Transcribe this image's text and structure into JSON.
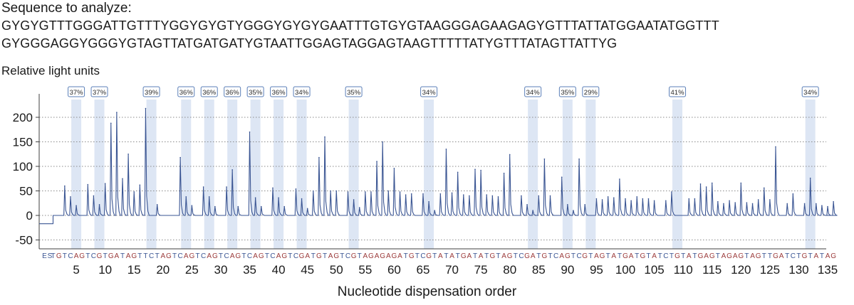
{
  "header": {
    "title": "Sequence to analyze:",
    "sequence_line1": "GYGYGTTTGGGATTGTTTYGGYGYGTYGGGYGYGYGAATTTGTGYGTAAGGGAGAAGAGYGTTTATTATGGAATATGGTTT",
    "sequence_line2": "GYGGGAGGYGGGYGTAGTTATGATGATYGTAATTGGAGTAGGAGTAAGTTTTTATYGTTTATAGTTATTYG"
  },
  "chart_data": {
    "type": "line",
    "title": "",
    "ylabel": "Relative light units",
    "xlabel": "Nucleotide dispensation order",
    "ylim": [
      -60,
      230
    ],
    "y_ticks": [
      -50,
      0,
      50,
      100,
      150,
      200
    ],
    "grid": "dotted horizontal",
    "baseline_start": -17,
    "dispensation_order": "ESTGTCAGTCGTGATAGTTCTAGTCAGTCAGTCAGTCAGTCAGTCGATGTAGTCGTAGAGAGATGTCGTATATGATATGTAGTCGATGTCAGTCGTAGTATGATGTATCTGTATGAGTAGAGTAGTTGATCTGTATAG",
    "x_tick_labels": [
      "5",
      "10",
      "15",
      "20",
      "25",
      "30",
      "35",
      "40",
      "45",
      "50",
      "55",
      "60",
      "65",
      "70",
      "75",
      "80",
      "85",
      "90",
      "95",
      "100",
      "105",
      "110",
      "115",
      "120",
      "125",
      "130",
      "135"
    ],
    "peaks": [
      {
        "pos": 3,
        "h": 60
      },
      {
        "pos": 4,
        "h": 38
      },
      {
        "pos": 5,
        "h": 20
      },
      {
        "pos": 7,
        "h": 63
      },
      {
        "pos": 8,
        "h": 40
      },
      {
        "pos": 9,
        "h": 22
      },
      {
        "pos": 10,
        "h": 65
      },
      {
        "pos": 11,
        "h": 188
      },
      {
        "pos": 12,
        "h": 210
      },
      {
        "pos": 13,
        "h": 75
      },
      {
        "pos": 14,
        "h": 125
      },
      {
        "pos": 15,
        "h": 48
      },
      {
        "pos": 16,
        "h": 62
      },
      {
        "pos": 17,
        "h": 218
      },
      {
        "pos": 19,
        "h": 22
      },
      {
        "pos": 23,
        "h": 118
      },
      {
        "pos": 24,
        "h": 38
      },
      {
        "pos": 25,
        "h": 20
      },
      {
        "pos": 27,
        "h": 58
      },
      {
        "pos": 28,
        "h": 38
      },
      {
        "pos": 29,
        "h": 18
      },
      {
        "pos": 31,
        "h": 58
      },
      {
        "pos": 32,
        "h": 93
      },
      {
        "pos": 33,
        "h": 18
      },
      {
        "pos": 35,
        "h": 170
      },
      {
        "pos": 36,
        "h": 36
      },
      {
        "pos": 37,
        "h": 18
      },
      {
        "pos": 39,
        "h": 56
      },
      {
        "pos": 40,
        "h": 36
      },
      {
        "pos": 41,
        "h": 18
      },
      {
        "pos": 43,
        "h": 54
      },
      {
        "pos": 44,
        "h": 34
      },
      {
        "pos": 45,
        "h": 14
      },
      {
        "pos": 46,
        "h": 50
      },
      {
        "pos": 47,
        "h": 118
      },
      {
        "pos": 48,
        "h": 160
      },
      {
        "pos": 49,
        "h": 50
      },
      {
        "pos": 50,
        "h": 50
      },
      {
        "pos": 52,
        "h": 48
      },
      {
        "pos": 53,
        "h": 32
      },
      {
        "pos": 54,
        "h": 16
      },
      {
        "pos": 55,
        "h": 48
      },
      {
        "pos": 56,
        "h": 48
      },
      {
        "pos": 57,
        "h": 110
      },
      {
        "pos": 58,
        "h": 150
      },
      {
        "pos": 59,
        "h": 50
      },
      {
        "pos": 60,
        "h": 96
      },
      {
        "pos": 61,
        "h": 48
      },
      {
        "pos": 62,
        "h": 42
      },
      {
        "pos": 63,
        "h": 44
      },
      {
        "pos": 65,
        "h": 44
      },
      {
        "pos": 66,
        "h": 28
      },
      {
        "pos": 67,
        "h": 10
      },
      {
        "pos": 68,
        "h": 44
      },
      {
        "pos": 69,
        "h": 135
      },
      {
        "pos": 70,
        "h": 46
      },
      {
        "pos": 71,
        "h": 88
      },
      {
        "pos": 72,
        "h": 42
      },
      {
        "pos": 73,
        "h": 40
      },
      {
        "pos": 74,
        "h": 94
      },
      {
        "pos": 75,
        "h": 92
      },
      {
        "pos": 76,
        "h": 42
      },
      {
        "pos": 77,
        "h": 40
      },
      {
        "pos": 78,
        "h": 38
      },
      {
        "pos": 79,
        "h": 86
      },
      {
        "pos": 80,
        "h": 124
      },
      {
        "pos": 82,
        "h": 40
      },
      {
        "pos": 83,
        "h": 22
      },
      {
        "pos": 84,
        "h": 10
      },
      {
        "pos": 85,
        "h": 40
      },
      {
        "pos": 86,
        "h": 115
      },
      {
        "pos": 87,
        "h": 40
      },
      {
        "pos": 89,
        "h": 78
      },
      {
        "pos": 90,
        "h": 22
      },
      {
        "pos": 91,
        "h": 10
      },
      {
        "pos": 92,
        "h": 115
      },
      {
        "pos": 93,
        "h": 22
      },
      {
        "pos": 95,
        "h": 34
      },
      {
        "pos": 96,
        "h": 32
      },
      {
        "pos": 97,
        "h": 38
      },
      {
        "pos": 98,
        "h": 36
      },
      {
        "pos": 99,
        "h": 74
      },
      {
        "pos": 100,
        "h": 34
      },
      {
        "pos": 101,
        "h": 30
      },
      {
        "pos": 102,
        "h": 38
      },
      {
        "pos": 103,
        "h": 34
      },
      {
        "pos": 104,
        "h": 34
      },
      {
        "pos": 105,
        "h": 30
      },
      {
        "pos": 107,
        "h": 30
      },
      {
        "pos": 108,
        "h": 48
      },
      {
        "pos": 111,
        "h": 34
      },
      {
        "pos": 112,
        "h": 34
      },
      {
        "pos": 113,
        "h": 64
      },
      {
        "pos": 114,
        "h": 58
      },
      {
        "pos": 115,
        "h": 66
      },
      {
        "pos": 116,
        "h": 28
      },
      {
        "pos": 117,
        "h": 24
      },
      {
        "pos": 118,
        "h": 30
      },
      {
        "pos": 119,
        "h": 26
      },
      {
        "pos": 120,
        "h": 66
      },
      {
        "pos": 121,
        "h": 26
      },
      {
        "pos": 122,
        "h": 24
      },
      {
        "pos": 123,
        "h": 32
      },
      {
        "pos": 124,
        "h": 56
      },
      {
        "pos": 125,
        "h": 32
      },
      {
        "pos": 126,
        "h": 140
      },
      {
        "pos": 128,
        "h": 24
      },
      {
        "pos": 129,
        "h": 44
      },
      {
        "pos": 131,
        "h": 24
      },
      {
        "pos": 132,
        "h": 76
      },
      {
        "pos": 133,
        "h": 24
      },
      {
        "pos": 134,
        "h": 20
      },
      {
        "pos": 135,
        "h": 18
      },
      {
        "pos": 136,
        "h": 28
      }
    ],
    "cpg_sites": [
      {
        "pos": 5,
        "label": "37%"
      },
      {
        "pos": 9,
        "label": "37%"
      },
      {
        "pos": 18,
        "label": "39%"
      },
      {
        "pos": 24,
        "label": "36%"
      },
      {
        "pos": 28,
        "label": "36%"
      },
      {
        "pos": 32,
        "label": "36%"
      },
      {
        "pos": 36,
        "label": "35%"
      },
      {
        "pos": 40,
        "label": "36%"
      },
      {
        "pos": 44,
        "label": "34%"
      },
      {
        "pos": 53,
        "label": "35%"
      },
      {
        "pos": 66,
        "label": "34%"
      },
      {
        "pos": 84,
        "label": "34%"
      },
      {
        "pos": 90,
        "label": "35%"
      },
      {
        "pos": 94,
        "label": "29%"
      },
      {
        "pos": 109,
        "label": "41%"
      },
      {
        "pos": 132,
        "label": "34%"
      }
    ],
    "colors": {
      "trace": "#3a5593",
      "cpg_band": "#dde6f4",
      "badge_border": "#5b7fb8",
      "axis": "#404040",
      "grid": "#8a8a8a",
      "dispensation_A_G": "#9b3a3a",
      "dispensation_T_C": "#3a5593"
    }
  }
}
